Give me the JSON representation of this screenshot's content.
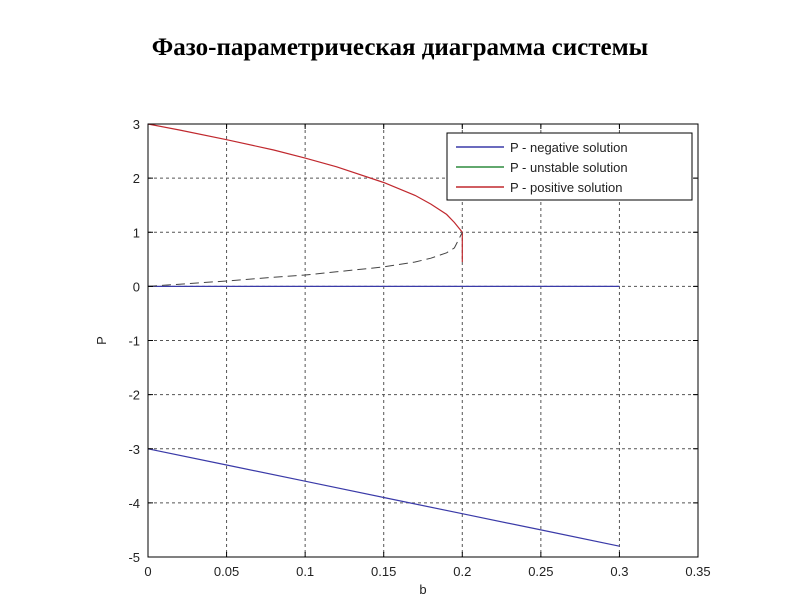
{
  "slide": {
    "title": "Фазо-параметрическая диаграмма системы"
  },
  "chart_data": {
    "type": "line",
    "title": "",
    "xlabel": "b",
    "ylabel": "P",
    "xlim": [
      0,
      0.35
    ],
    "ylim": [
      -5,
      3
    ],
    "xticks": [
      0,
      0.05,
      0.1,
      0.15,
      0.2,
      0.25,
      0.3,
      0.35
    ],
    "xtick_labels": [
      "0",
      "0.05",
      "0.1",
      "0.15",
      "0.2",
      "0.25",
      "0.3",
      "0.35"
    ],
    "yticks": [
      -5,
      -4,
      -3,
      -2,
      -1,
      0,
      1,
      2,
      3
    ],
    "ytick_labels": [
      "-5",
      "-4",
      "-3",
      "-2",
      "-1",
      "0",
      "1",
      "2",
      "3"
    ],
    "grid": true,
    "legend_position": "top-right",
    "series": [
      {
        "name": "P - negative solution",
        "color": "#3a3aa8",
        "segments": [
          {
            "x": [
              0,
              0.3
            ],
            "y": [
              0,
              0
            ]
          },
          {
            "x": [
              0,
              0.05,
              0.1,
              0.15,
              0.2,
              0.25,
              0.3
            ],
            "y": [
              -3,
              -3.3,
              -3.6,
              -3.9,
              -4.2,
              -4.5,
              -4.8
            ]
          }
        ]
      },
      {
        "name": "P - unstable solution",
        "color": "#2e8b3e",
        "dash": true,
        "segments": [
          {
            "x": [
              0,
              0.02,
              0.05,
              0.08,
              0.1,
              0.12,
              0.15,
              0.17,
              0.18,
              0.19,
              0.195,
              0.2
            ],
            "y": [
              0,
              0.04,
              0.1,
              0.17,
              0.21,
              0.27,
              0.36,
              0.45,
              0.52,
              0.62,
              0.71,
              1.0
            ]
          }
        ]
      },
      {
        "name": "P - positive solution",
        "color": "#c0282e",
        "segments": [
          {
            "x": [
              0,
              0.02,
              0.05,
              0.08,
              0.1,
              0.12,
              0.15,
              0.17,
              0.18,
              0.19,
              0.195,
              0.2
            ],
            "y": [
              3,
              2.89,
              2.71,
              2.52,
              2.37,
              2.21,
              1.92,
              1.68,
              1.52,
              1.33,
              1.18,
              1.0
            ]
          },
          {
            "x": [
              0.2,
              0.2
            ],
            "y": [
              1.0,
              0.45
            ]
          }
        ]
      }
    ]
  }
}
